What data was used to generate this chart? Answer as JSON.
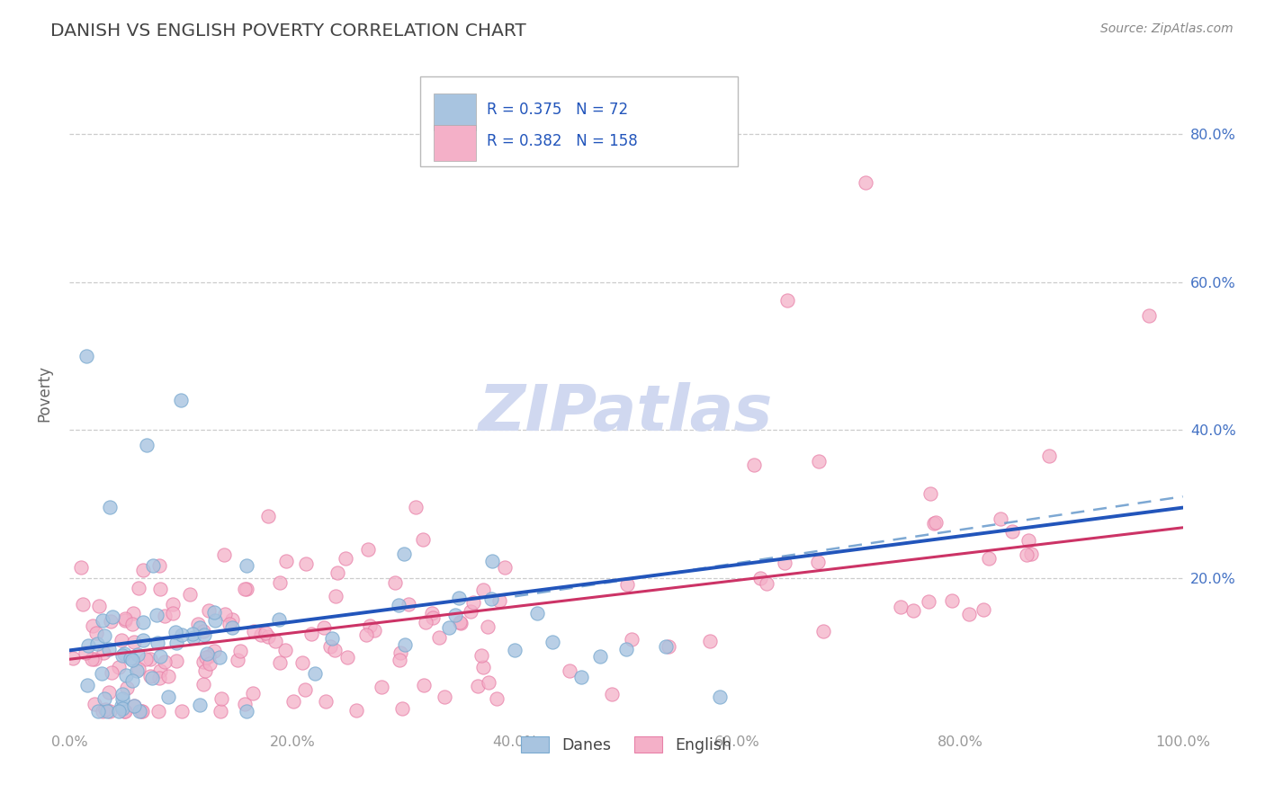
{
  "title": "DANISH VS ENGLISH POVERTY CORRELATION CHART",
  "source": "Source: ZipAtlas.com",
  "ylabel": "Poverty",
  "xlim": [
    0.0,
    1.0
  ],
  "ylim": [
    0.0,
    0.9
  ],
  "x_ticks": [
    0.0,
    0.2,
    0.4,
    0.6,
    0.8,
    1.0
  ],
  "x_tick_labels": [
    "0.0%",
    "20.0%",
    "40.0%",
    "60.0%",
    "80.0%",
    "100.0%"
  ],
  "y_tick_labels": [
    "20.0%",
    "40.0%",
    "60.0%",
    "80.0%"
  ],
  "y_ticks": [
    0.2,
    0.4,
    0.6,
    0.8
  ],
  "danish_color": "#a8c4e0",
  "danish_edge_color": "#7aaad0",
  "english_color": "#f4b0c8",
  "english_edge_color": "#e880a8",
  "danish_line_color": "#2255bb",
  "danish_dash_color": "#6699cc",
  "english_line_color": "#cc3366",
  "R_danish": 0.375,
  "N_danish": 72,
  "R_english": 0.382,
  "N_english": 158,
  "legend_labels": [
    "Danes",
    "English"
  ],
  "title_color": "#444444",
  "source_color": "#888888",
  "axis_label_color": "#666666",
  "tick_color": "#999999",
  "right_tick_color": "#4472c4",
  "grid_color": "#cccccc",
  "watermark_color": "#d0d8f0"
}
